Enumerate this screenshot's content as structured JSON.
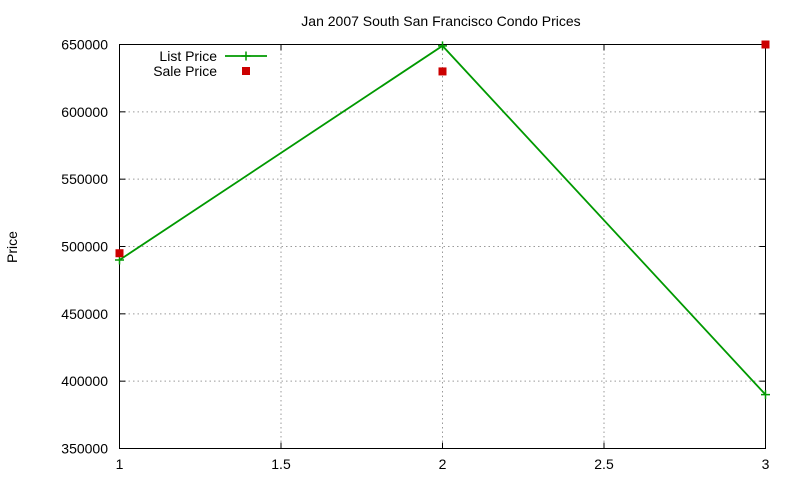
{
  "chart_data": {
    "type": "line",
    "title": "Jan 2007 South San Francisco Condo Prices",
    "xlabel": "",
    "ylabel": "Price",
    "xlim": [
      1,
      3
    ],
    "ylim": [
      350000,
      650000
    ],
    "x_ticks": [
      1,
      1.5,
      2,
      2.5,
      3
    ],
    "x_tick_labels": [
      "1",
      "1.5",
      "2",
      "2.5",
      "3"
    ],
    "y_ticks": [
      350000,
      400000,
      450000,
      500000,
      550000,
      600000,
      650000
    ],
    "y_tick_labels": [
      "350000",
      "400000",
      "450000",
      "500000",
      "550000",
      "600000",
      "650000"
    ],
    "grid": true,
    "legend_position": "top-left",
    "series": [
      {
        "name": "List Price",
        "style": "linespoints",
        "marker": "plus",
        "color": "#009900",
        "x": [
          1,
          2,
          3
        ],
        "y": [
          490000,
          649000,
          390000
        ]
      },
      {
        "name": "Sale Price",
        "style": "points",
        "marker": "square",
        "color": "#cc0000",
        "x": [
          1,
          2,
          3
        ],
        "y": [
          495000,
          630000,
          650000
        ]
      }
    ]
  }
}
